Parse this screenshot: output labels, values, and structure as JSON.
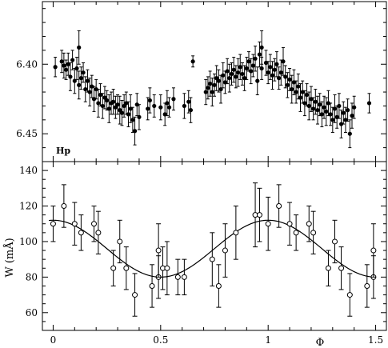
{
  "chart_data": [
    {
      "type": "scatter",
      "panel": "top",
      "panel_label": "Hp",
      "ylabel": "",
      "xlim": [
        -0.05,
        1.55
      ],
      "ylim": [
        6.47,
        6.355
      ],
      "y_inverted": true,
      "yticks": [
        6.4,
        6.45
      ],
      "ytick_labels": [
        "6.40",
        "6.45"
      ],
      "marker": "filled-circle",
      "error_bars": true,
      "points": [
        [
          0.01,
          6.402,
          0.007
        ],
        [
          0.04,
          6.398,
          0.008
        ],
        [
          0.05,
          6.401,
          0.009
        ],
        [
          0.06,
          6.404,
          0.007
        ],
        [
          0.07,
          6.4,
          0.008
        ],
        [
          0.08,
          6.409,
          0.01
        ],
        [
          0.09,
          6.397,
          0.007
        ],
        [
          0.1,
          6.412,
          0.009
        ],
        [
          0.11,
          6.403,
          0.008
        ],
        [
          0.12,
          6.415,
          0.01
        ],
        [
          0.12,
          6.388,
          0.012
        ],
        [
          0.13,
          6.41,
          0.008
        ],
        [
          0.14,
          6.406,
          0.007
        ],
        [
          0.15,
          6.418,
          0.009
        ],
        [
          0.16,
          6.412,
          0.008
        ],
        [
          0.17,
          6.42,
          0.01
        ],
        [
          0.18,
          6.416,
          0.008
        ],
        [
          0.19,
          6.425,
          0.009
        ],
        [
          0.2,
          6.418,
          0.007
        ],
        [
          0.21,
          6.428,
          0.01
        ],
        [
          0.22,
          6.422,
          0.008
        ],
        [
          0.23,
          6.43,
          0.009
        ],
        [
          0.24,
          6.424,
          0.008
        ],
        [
          0.25,
          6.426,
          0.007
        ],
        [
          0.26,
          6.432,
          0.01
        ],
        [
          0.27,
          6.428,
          0.008
        ],
        [
          0.28,
          6.427,
          0.009
        ],
        [
          0.29,
          6.431,
          0.008
        ],
        [
          0.3,
          6.429,
          0.007
        ],
        [
          0.31,
          6.433,
          0.01
        ],
        [
          0.32,
          6.435,
          0.009
        ],
        [
          0.33,
          6.43,
          0.008
        ],
        [
          0.34,
          6.428,
          0.008
        ],
        [
          0.35,
          6.436,
          0.009
        ],
        [
          0.36,
          6.432,
          0.01
        ],
        [
          0.37,
          6.44,
          0.009
        ],
        [
          0.38,
          6.448,
          0.01
        ],
        [
          0.39,
          6.429,
          0.008
        ],
        [
          0.4,
          6.438,
          0.009
        ],
        [
          0.44,
          6.432,
          0.008
        ],
        [
          0.45,
          6.426,
          0.009
        ],
        [
          0.47,
          6.43,
          0.008
        ],
        [
          0.5,
          6.431,
          0.009
        ],
        [
          0.52,
          6.436,
          0.008
        ],
        [
          0.53,
          6.428,
          0.009
        ],
        [
          0.54,
          6.431,
          0.007
        ],
        [
          0.56,
          6.425,
          0.008
        ],
        [
          0.61,
          6.43,
          0.009
        ],
        [
          0.63,
          6.427,
          0.008
        ],
        [
          0.64,
          6.433,
          0.009
        ],
        [
          0.65,
          6.398,
          0.004
        ],
        [
          0.71,
          6.42,
          0.009
        ],
        [
          0.72,
          6.417,
          0.008
        ],
        [
          0.73,
          6.414,
          0.009
        ],
        [
          0.74,
          6.42,
          0.01
        ],
        [
          0.75,
          6.415,
          0.008
        ],
        [
          0.76,
          6.41,
          0.009
        ],
        [
          0.77,
          6.412,
          0.008
        ],
        [
          0.78,
          6.418,
          0.01
        ],
        [
          0.79,
          6.408,
          0.009
        ],
        [
          0.8,
          6.413,
          0.008
        ],
        [
          0.81,
          6.405,
          0.009
        ],
        [
          0.82,
          6.41,
          0.01
        ],
        [
          0.83,
          6.407,
          0.008
        ],
        [
          0.84,
          6.404,
          0.009
        ],
        [
          0.85,
          6.409,
          0.008
        ],
        [
          0.86,
          6.406,
          0.01
        ],
        [
          0.87,
          6.402,
          0.009
        ],
        [
          0.88,
          6.407,
          0.008
        ],
        [
          0.89,
          6.41,
          0.009
        ],
        [
          0.9,
          6.403,
          0.008
        ],
        [
          0.91,
          6.398,
          0.007
        ],
        [
          0.92,
          6.405,
          0.009
        ],
        [
          0.93,
          6.401,
          0.008
        ],
        [
          0.94,
          6.396,
          0.009
        ],
        [
          0.95,
          6.412,
          0.01
        ],
        [
          0.96,
          6.393,
          0.009
        ],
        [
          0.97,
          6.388,
          0.012
        ],
        [
          0.97,
          6.403,
          0.008
        ],
        [
          0.99,
          6.399,
          0.009
        ],
        [
          1.0,
          6.406,
          0.008
        ],
        [
          1.01,
          6.402,
          0.009
        ],
        [
          1.02,
          6.408,
          0.01
        ],
        [
          1.03,
          6.404,
          0.008
        ],
        [
          1.04,
          6.4,
          0.009
        ],
        [
          1.05,
          6.41,
          0.008
        ],
        [
          1.06,
          6.406,
          0.009
        ],
        [
          1.07,
          6.398,
          0.01
        ],
        [
          1.08,
          6.409,
          0.008
        ],
        [
          1.09,
          6.415,
          0.009
        ],
        [
          1.1,
          6.411,
          0.008
        ],
        [
          1.11,
          6.418,
          0.01
        ],
        [
          1.12,
          6.413,
          0.009
        ],
        [
          1.13,
          6.42,
          0.008
        ],
        [
          1.14,
          6.416,
          0.009
        ],
        [
          1.15,
          6.424,
          0.01
        ],
        [
          1.16,
          6.42,
          0.008
        ],
        [
          1.17,
          6.428,
          0.009
        ],
        [
          1.18,
          6.422,
          0.008
        ],
        [
          1.19,
          6.43,
          0.01
        ],
        [
          1.2,
          6.425,
          0.009
        ],
        [
          1.21,
          6.432,
          0.008
        ],
        [
          1.22,
          6.427,
          0.009
        ],
        [
          1.23,
          6.433,
          0.01
        ],
        [
          1.24,
          6.429,
          0.008
        ],
        [
          1.25,
          6.436,
          0.009
        ],
        [
          1.26,
          6.431,
          0.008
        ],
        [
          1.27,
          6.434,
          0.01
        ],
        [
          1.28,
          6.428,
          0.009
        ],
        [
          1.29,
          6.436,
          0.008
        ],
        [
          1.3,
          6.44,
          0.009
        ],
        [
          1.31,
          6.432,
          0.01
        ],
        [
          1.32,
          6.438,
          0.008
        ],
        [
          1.33,
          6.43,
          0.009
        ],
        [
          1.34,
          6.443,
          0.01
        ],
        [
          1.35,
          6.435,
          0.008
        ],
        [
          1.36,
          6.44,
          0.009
        ],
        [
          1.37,
          6.433,
          0.008
        ],
        [
          1.38,
          6.45,
          0.01
        ],
        [
          1.39,
          6.437,
          0.009
        ],
        [
          1.4,
          6.431,
          0.008
        ],
        [
          1.47,
          6.428,
          0.007
        ]
      ]
    },
    {
      "type": "scatter",
      "panel": "bottom",
      "xlabel": "Φ",
      "ylabel": "W  (mÅ)",
      "xlim": [
        -0.05,
        1.55
      ],
      "ylim": [
        50,
        145
      ],
      "xticks": [
        0,
        0.5,
        1,
        1.5
      ],
      "xtick_labels": [
        "0",
        "0.5",
        "1",
        "1.5"
      ],
      "yticks": [
        60,
        80,
        100,
        120,
        140
      ],
      "ytick_labels": [
        "60",
        "80",
        "100",
        "120",
        "140"
      ],
      "marker": "open-circle",
      "error_bars": true,
      "points": [
        [
          0.0,
          110,
          10
        ],
        [
          0.05,
          120,
          12
        ],
        [
          0.1,
          110,
          12
        ],
        [
          0.13,
          105,
          10
        ],
        [
          0.19,
          110,
          10
        ],
        [
          0.21,
          105,
          12
        ],
        [
          0.28,
          85,
          10
        ],
        [
          0.31,
          100,
          12
        ],
        [
          0.34,
          85,
          12
        ],
        [
          0.38,
          70,
          12
        ],
        [
          0.46,
          75,
          12
        ],
        [
          0.49,
          80,
          12
        ],
        [
          0.49,
          95,
          15
        ],
        [
          0.51,
          85,
          12
        ],
        [
          0.53,
          85,
          15
        ],
        [
          0.58,
          80,
          10
        ],
        [
          0.61,
          80,
          10
        ],
        [
          0.74,
          90,
          15
        ],
        [
          0.77,
          75,
          12
        ],
        [
          0.8,
          95,
          15
        ],
        [
          0.85,
          105,
          15
        ],
        [
          0.94,
          115,
          18
        ],
        [
          0.96,
          115,
          15
        ],
        [
          1.0,
          110,
          15
        ],
        [
          1.05,
          120,
          12
        ],
        [
          1.1,
          110,
          12
        ],
        [
          1.13,
          105,
          10
        ],
        [
          1.19,
          110,
          10
        ],
        [
          1.21,
          105,
          12
        ],
        [
          1.28,
          85,
          10
        ],
        [
          1.31,
          100,
          12
        ],
        [
          1.34,
          85,
          12
        ],
        [
          1.38,
          70,
          12
        ],
        [
          1.46,
          75,
          12
        ],
        [
          1.49,
          80,
          12
        ],
        [
          1.49,
          95,
          15
        ]
      ],
      "fit_curve": {
        "type": "sinusoid",
        "mean": 96,
        "amplitude": 16,
        "period": 1.0,
        "max_at": 0.0
      }
    }
  ]
}
